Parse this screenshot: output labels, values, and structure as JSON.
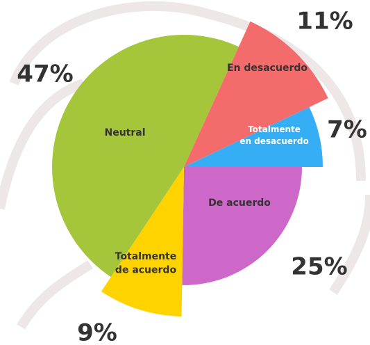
{
  "chart_data": {
    "type": "pie",
    "categories": [
      "De acuerdo",
      "Totalmente de acuerdo",
      "Neutral",
      "En desacuerdo",
      "Totalmente en desacuerdo"
    ],
    "values": [
      25,
      9,
      47,
      11,
      7
    ],
    "value_labels": [
      "25%",
      "9%",
      "47%",
      "11%",
      "7%"
    ],
    "colors": [
      "#cd68c8",
      "#ffd300",
      "#a5c63b",
      "#f46b6b",
      "#35aef6"
    ]
  }
}
